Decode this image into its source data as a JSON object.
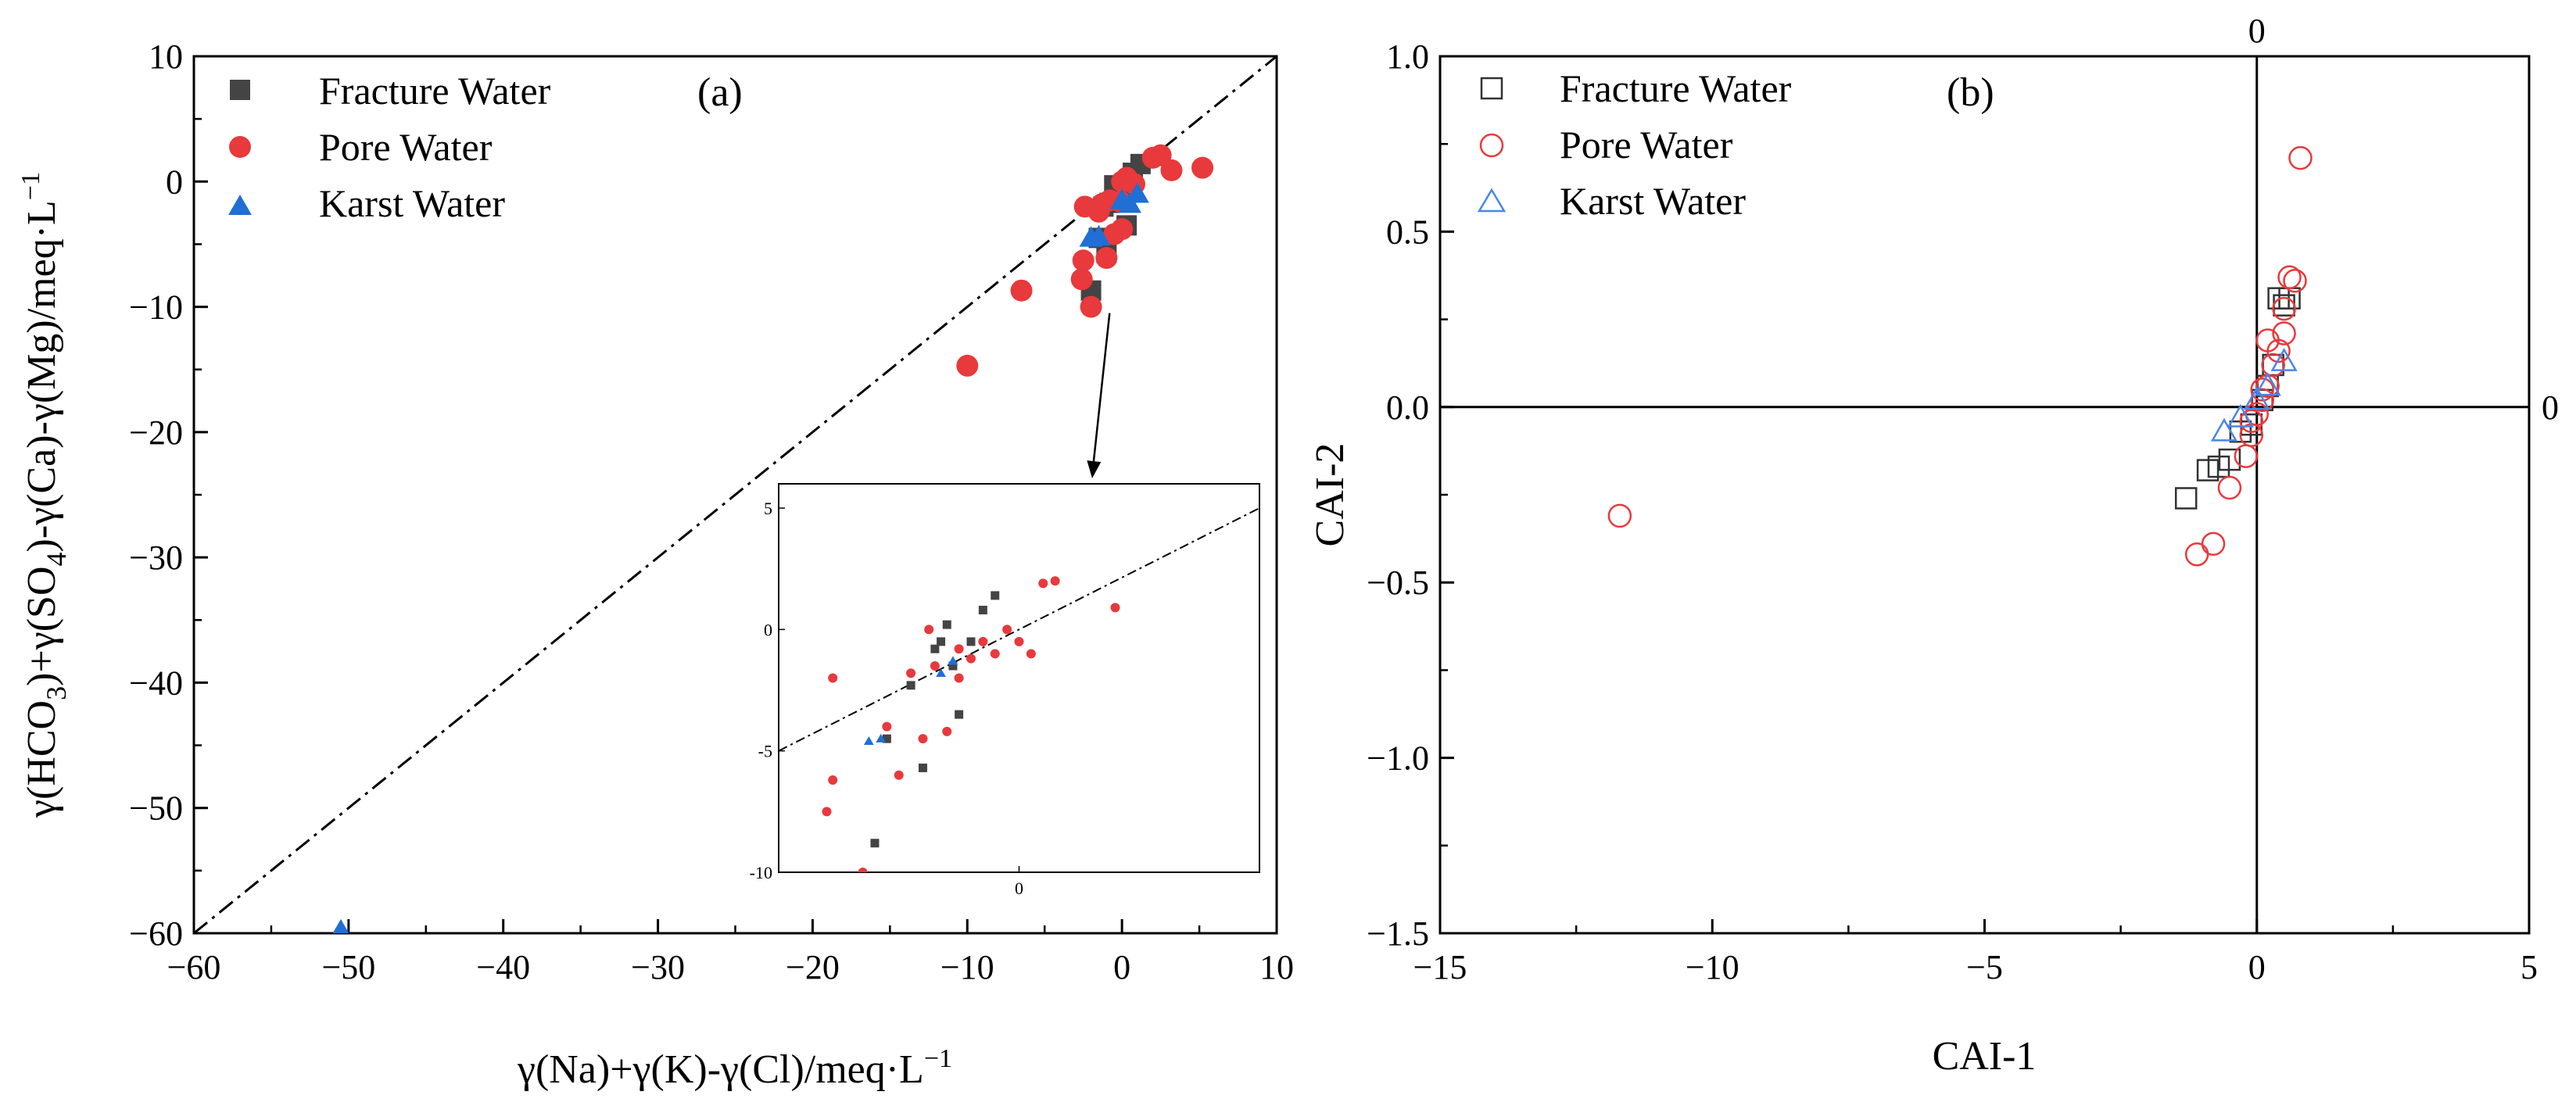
{
  "chart_data": [
    {
      "type": "scatter",
      "panel_label": "(a)",
      "xlabel_main": "γ(Na)+γ(K)-γ(Cl)/meq·L",
      "xlabel_sup": "−1",
      "ylabel_parts": [
        "γ(HCO",
        "3",
        ")+γ(SO",
        "4",
        ")-γ(Ca)-γ(Mg)/meq·L",
        "−1"
      ],
      "xlim": [
        -60,
        10
      ],
      "ylim": [
        -60,
        10
      ],
      "xticks": [
        -60,
        -50,
        -40,
        -30,
        -20,
        -10,
        0,
        10
      ],
      "yticks": [
        -60,
        -50,
        -40,
        -30,
        -20,
        -10,
        0,
        10
      ],
      "xtick_labels": [
        "−60",
        "−50",
        "−40",
        "−30",
        "−20",
        "−10",
        "0",
        "10"
      ],
      "ytick_labels": [
        "−60",
        "−50",
        "−40",
        "−30",
        "−20",
        "−10",
        "0",
        "10"
      ],
      "reference_line": {
        "style": "dash-dot",
        "slope": 1,
        "intercept": 0
      },
      "legend": [
        "Fracture Water",
        "Pore Water",
        "Karst Water"
      ],
      "series": [
        {
          "name": "Fracture Water",
          "marker": "square-filled",
          "color": "#444444",
          "points": [
            [
              -1.5,
              -4.5
            ],
            [
              -2.0,
              -8.7
            ],
            [
              -1.0,
              -5.7
            ],
            [
              -1.2,
              -2.0
            ],
            [
              -0.3,
              -1.0
            ],
            [
              0.3,
              -3.5
            ],
            [
              0.7,
              0.7
            ],
            [
              1.2,
              1.4
            ],
            [
              -0.5,
              -0.3
            ],
            [
              0.2,
              -1.0
            ],
            [
              -0.8,
              -1.7
            ]
          ]
        },
        {
          "name": "Pore Water",
          "marker": "circle-filled",
          "color": "#e8393c",
          "points": [
            [
              -10.0,
              -14.7
            ],
            [
              -6.5,
              -8.7
            ],
            [
              -2.6,
              -7.8
            ],
            [
              -2.5,
              -6.3
            ],
            [
              -2.0,
              -10.0
            ],
            [
              -1.0,
              -6.1
            ],
            [
              -2.4,
              -2.0
            ],
            [
              -1.3,
              -1.8
            ],
            [
              -0.8,
              -1.5
            ],
            [
              -0.1,
              -1.6
            ],
            [
              0.0,
              0.0
            ],
            [
              0.3,
              0.3
            ],
            [
              0.8,
              -0.2
            ],
            [
              2.0,
              1.9
            ],
            [
              2.5,
              2.1
            ],
            [
              3.2,
              0.9
            ],
            [
              5.2,
              1.1
            ],
            [
              -0.5,
              -4.2
            ],
            [
              0.0,
              -3.8
            ],
            [
              -1.5,
              -2.4
            ]
          ]
        },
        {
          "name": "Karst Water",
          "marker": "triangle-filled",
          "color": "#1f6fd6",
          "points": [
            [
              -50.5,
              -59.8
            ],
            [
              -2.0,
              -4.5
            ],
            [
              -1.5,
              -4.4
            ],
            [
              0.0,
              -1.5
            ],
            [
              0.5,
              -1.8
            ],
            [
              1.0,
              -1.0
            ]
          ]
        }
      ],
      "inset": {
        "xlim": [
          -20,
          20
        ],
        "ylim": [
          -10,
          6
        ],
        "xticks": [
          0
        ],
        "xtick_labels": [
          "0"
        ],
        "yticks": [
          -10,
          -5,
          0,
          5
        ],
        "ytick_labels": [
          "-10",
          "-5",
          "0",
          "5"
        ],
        "series": [
          {
            "name": "Fracture Water",
            "color": "#444444",
            "points": [
              [
                -8,
                -5.7
              ],
              [
                -9,
                -2.3
              ],
              [
                -11,
                -4.5
              ],
              [
                -12,
                -8.8
              ],
              [
                -5,
                -3.5
              ],
              [
                -4,
                -0.5
              ],
              [
                -3,
                0.8
              ],
              [
                -2,
                1.4
              ],
              [
                -6,
                0.2
              ],
              [
                -7,
                -0.8
              ],
              [
                -5.5,
                -1.5
              ],
              [
                -6.5,
                -0.5
              ]
            ]
          },
          {
            "name": "Pore Water",
            "color": "#e8393c",
            "points": [
              [
                -16,
                -7.5
              ],
              [
                -15.5,
                -6.2
              ],
              [
                -15.5,
                -2.0
              ],
              [
                -13,
                -10
              ],
              [
                -11,
                -4.0
              ],
              [
                -10,
                -6.0
              ],
              [
                -9,
                -1.8
              ],
              [
                -8,
                -4.5
              ],
              [
                -7,
                -1.5
              ],
              [
                -6,
                -4.2
              ],
              [
                -5,
                -0.8
              ],
              [
                -4,
                -1.2
              ],
              [
                -3,
                -0.5
              ],
              [
                -2,
                -1.0
              ],
              [
                -1,
                0.0
              ],
              [
                0,
                -0.5
              ],
              [
                1,
                -1.0
              ],
              [
                2,
                1.9
              ],
              [
                3,
                2.0
              ],
              [
                8,
                0.9
              ],
              [
                -7.5,
                0.0
              ],
              [
                -5,
                -2.0
              ]
            ]
          },
          {
            "name": "Karst Water",
            "color": "#1f6fd6",
            "points": [
              [
                -12.5,
                -4.6
              ],
              [
                -11.5,
                -4.5
              ],
              [
                -6.5,
                -1.8
              ],
              [
                -5.5,
                -1.3
              ]
            ]
          }
        ]
      }
    },
    {
      "type": "scatter",
      "panel_label": "(b)",
      "xlabel": "CAI-1",
      "ylabel": "CAI-2",
      "xlim": [
        -15,
        5
      ],
      "ylim": [
        -1.5,
        1.0
      ],
      "xticks": [
        -15,
        -10,
        -5,
        0,
        5
      ],
      "yticks": [
        -1.5,
        -1.0,
        -0.5,
        0.0,
        0.5,
        1.0
      ],
      "xtick_labels": [
        "−15",
        "−10",
        "−5",
        "0",
        "5"
      ],
      "ytick_labels": [
        "−1.5",
        "−1.0",
        "−0.5",
        "0.0",
        "0.5",
        "1.0"
      ],
      "zero_line_labels": [
        "0",
        "0"
      ],
      "legend": [
        "Fracture Water",
        "Pore Water",
        "Karst Water"
      ],
      "series": [
        {
          "name": "Fracture Water",
          "marker": "square-open",
          "color": "#333333",
          "points": [
            [
              -1.3,
              -0.26
            ],
            [
              -0.9,
              -0.18
            ],
            [
              -0.7,
              -0.17
            ],
            [
              -0.5,
              -0.15
            ],
            [
              -0.3,
              -0.07
            ],
            [
              0.1,
              0.02
            ],
            [
              0.2,
              0.06
            ],
            [
              0.3,
              0.12
            ],
            [
              0.4,
              0.31
            ],
            [
              0.5,
              0.29
            ],
            [
              0.6,
              0.31
            ],
            [
              -0.1,
              -0.05
            ]
          ]
        },
        {
          "name": "Pore Water",
          "marker": "circle-open",
          "color": "#e8393c",
          "points": [
            [
              -11.7,
              -0.31
            ],
            [
              -1.1,
              -0.42
            ],
            [
              -0.8,
              -0.39
            ],
            [
              -0.5,
              -0.23
            ],
            [
              -0.2,
              -0.14
            ],
            [
              -0.1,
              -0.08
            ],
            [
              0.0,
              -0.02
            ],
            [
              0.1,
              0.02
            ],
            [
              0.2,
              0.06
            ],
            [
              0.3,
              0.12
            ],
            [
              0.4,
              0.16
            ],
            [
              0.5,
              0.21
            ],
            [
              0.5,
              0.28
            ],
            [
              0.6,
              0.37
            ],
            [
              0.7,
              0.36
            ],
            [
              0.8,
              0.71
            ],
            [
              0.2,
              0.19
            ],
            [
              0.1,
              0.05
            ],
            [
              -0.1,
              -0.04
            ]
          ]
        },
        {
          "name": "Karst Water",
          "marker": "triangle-open",
          "color": "#4a86e8",
          "points": [
            [
              -0.6,
              -0.07
            ],
            [
              -0.3,
              -0.03
            ],
            [
              0.0,
              0.02
            ],
            [
              0.2,
              0.06
            ],
            [
              0.5,
              0.13
            ]
          ]
        }
      ]
    }
  ]
}
